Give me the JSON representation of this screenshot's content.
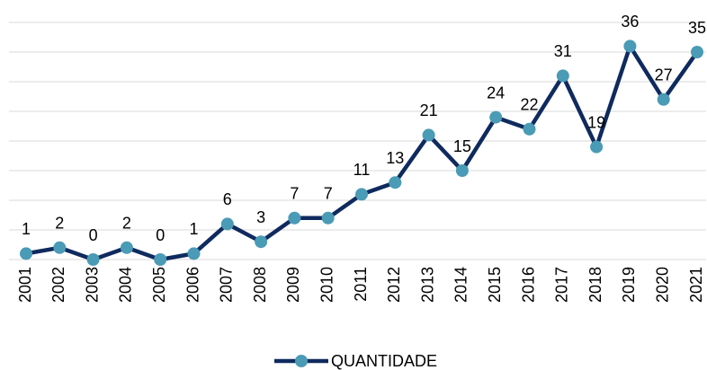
{
  "chart_data": {
    "type": "line",
    "categories": [
      "2001",
      "2002",
      "2003",
      "2004",
      "2005",
      "2006",
      "2007",
      "2008",
      "2009",
      "2010",
      "2011",
      "2012",
      "2013",
      "2014",
      "2015",
      "2016",
      "2017",
      "2018",
      "2019",
      "2020",
      "2021"
    ],
    "series": [
      {
        "name": "QUANTIDADE",
        "color": "#0f2a5e",
        "marker_color": "#4a9bb5",
        "values": [
          1,
          2,
          0,
          2,
          0,
          1,
          6,
          3,
          7,
          7,
          11,
          13,
          21,
          15,
          24,
          22,
          31,
          19,
          36,
          27,
          35
        ]
      }
    ],
    "ylim": [
      0,
      40
    ],
    "yticks": [
      0,
      5,
      10,
      15,
      20,
      25,
      30,
      35,
      40
    ],
    "grid": true,
    "legend": "bottom"
  }
}
